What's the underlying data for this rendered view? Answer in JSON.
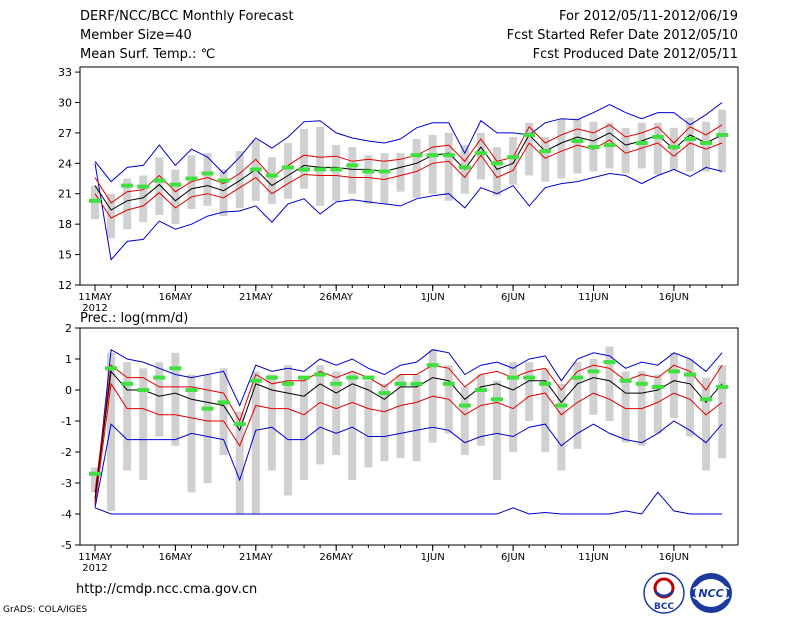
{
  "header": {
    "title": "DERF/NCC/BCC Monthly Forecast",
    "member_size": "Member Size=40",
    "variable": "Mean Surf. Temp.: ℃",
    "period": "For 2012/05/11-2012/06/19",
    "start_date": "Fcst Started Refer Date 2012/05/10",
    "produced_date": "Fcst Produced Date 2012/05/11"
  },
  "footer": {
    "url": "http://cmdp.ncc.cma.gov.cn",
    "grads": "GrADS: COLA/IGES",
    "logo_bcc": "BCC",
    "logo_ncc": "NCC"
  },
  "colors": {
    "median": "#000000",
    "inner": "#e00000",
    "outer": "#0000d0",
    "box": "#d0d0d0",
    "obs": "#40e040"
  },
  "chart_data": [
    {
      "type": "line",
      "title": "Mean Surf. Temp.: ℃",
      "xlabel": "",
      "ylabel": "",
      "x": [
        1,
        2,
        3,
        4,
        5,
        6,
        7,
        8,
        9,
        10,
        11,
        12,
        13,
        14,
        15,
        16,
        17,
        18,
        19,
        20,
        21,
        22,
        23,
        24,
        25,
        26,
        27,
        28,
        29,
        30,
        31,
        32,
        33,
        34,
        35,
        36,
        37,
        38,
        39,
        40
      ],
      "xticks": [
        {
          "day": 1,
          "label": "11MAY"
        },
        {
          "day": 6,
          "label": "16MAY"
        },
        {
          "day": 11,
          "label": "21MAY"
        },
        {
          "day": 16,
          "label": "26MAY"
        },
        {
          "day": 22,
          "label": "1JUN"
        },
        {
          "day": 27,
          "label": "6JUN"
        },
        {
          "day": 32,
          "label": "11JUN"
        },
        {
          "day": 37,
          "label": "16JUN"
        }
      ],
      "year_label": "2012",
      "ylim": [
        12,
        33.5
      ],
      "yticks": [
        12,
        15,
        18,
        21,
        24,
        27,
        30,
        33
      ],
      "series": [
        {
          "name": "max",
          "values": [
            24.0,
            14.5,
            16.3,
            16.5,
            18.3,
            17.5,
            18.0,
            18.8,
            19.2,
            19.3,
            19.8,
            18.2,
            20.0,
            20.5,
            19.0,
            20.2,
            20.4,
            20.2,
            20.0,
            19.8,
            20.5,
            20.8,
            21.0,
            19.6,
            21.6,
            21.0,
            21.8,
            19.8,
            21.6,
            22.0,
            22.2,
            22.6,
            23.0,
            22.8,
            22.0,
            22.8,
            23.4,
            22.7,
            23.6,
            23.2
          ]
        },
        {
          "name": "max_top",
          "values": [
            24.2,
            22.2,
            23.6,
            23.8,
            25.8,
            23.8,
            25.4,
            24.6,
            23.0,
            24.6,
            26.5,
            25.5,
            26.6,
            28.1,
            28.2,
            27.0,
            26.5,
            26.2,
            26.0,
            26.4,
            27.5,
            28.0,
            28.0,
            25.0,
            28.2,
            27.0,
            27.0,
            26.8,
            28.0,
            28.4,
            28.3,
            29.0,
            29.8,
            29.0,
            28.4,
            29.0,
            29.0,
            27.8,
            28.8,
            30.0
          ]
        },
        {
          "name": "upper",
          "values": [
            22.6,
            20.1,
            21.2,
            21.4,
            22.8,
            21.2,
            22.2,
            22.6,
            22.0,
            23.0,
            24.4,
            22.6,
            23.8,
            24.8,
            24.6,
            24.7,
            24.2,
            24.4,
            24.2,
            24.4,
            24.8,
            25.6,
            25.8,
            24.2,
            26.4,
            24.2,
            24.6,
            27.6,
            26.0,
            26.8,
            27.4,
            27.0,
            27.8,
            26.6,
            27.0,
            27.6,
            26.0,
            27.6,
            26.8,
            27.8
          ]
        },
        {
          "name": "median",
          "values": [
            21.8,
            19.4,
            20.3,
            20.6,
            21.9,
            20.3,
            21.5,
            21.8,
            21.3,
            22.3,
            23.4,
            21.8,
            22.8,
            23.8,
            23.6,
            23.6,
            23.4,
            23.4,
            23.2,
            23.6,
            24.0,
            24.8,
            25.0,
            23.4,
            25.6,
            23.4,
            24.0,
            26.8,
            25.2,
            26.0,
            26.6,
            26.2,
            27.0,
            25.8,
            26.2,
            26.8,
            25.4,
            26.8,
            26.0,
            26.8
          ]
        },
        {
          "name": "lower",
          "values": [
            21.0,
            18.6,
            19.4,
            19.8,
            21.1,
            19.6,
            20.7,
            21.0,
            20.6,
            21.6,
            22.6,
            21.0,
            22.0,
            22.9,
            22.8,
            22.8,
            22.6,
            22.6,
            22.4,
            22.8,
            23.2,
            24.0,
            24.2,
            22.6,
            24.8,
            22.6,
            23.3,
            26.0,
            24.5,
            25.2,
            25.8,
            25.4,
            26.3,
            25.0,
            25.5,
            26.0,
            24.7,
            26.0,
            25.4,
            26.0
          ]
        }
      ],
      "boxes": [
        [
          18.5,
          21.8
        ],
        [
          16.6,
          21.0
        ],
        [
          17.5,
          22.5
        ],
        [
          18.2,
          22.8
        ],
        [
          18.9,
          24.6
        ],
        [
          18.0,
          23.4
        ],
        [
          19.5,
          24.8
        ],
        [
          19.8,
          25.0
        ],
        [
          18.8,
          23.4
        ],
        [
          19.6,
          25.2
        ],
        [
          20.3,
          26.3
        ],
        [
          20.0,
          24.6
        ],
        [
          20.5,
          26.0
        ],
        [
          21.5,
          27.4
        ],
        [
          19.8,
          27.6
        ],
        [
          20.3,
          25.8
        ],
        [
          21.0,
          25.6
        ],
        [
          20.0,
          24.8
        ],
        [
          20.0,
          25.0
        ],
        [
          21.2,
          25.0
        ],
        [
          20.6,
          26.4
        ],
        [
          21.0,
          26.8
        ],
        [
          20.3,
          27.0
        ],
        [
          21.0,
          25.8
        ],
        [
          22.4,
          27.0
        ],
        [
          20.8,
          25.6
        ],
        [
          21.9,
          26.6
        ],
        [
          22.8,
          28.0
        ],
        [
          22.2,
          26.6
        ],
        [
          22.5,
          28.4
        ],
        [
          23.0,
          28.4
        ],
        [
          23.2,
          28.1
        ],
        [
          23.5,
          28.0
        ],
        [
          23.0,
          27.5
        ],
        [
          23.5,
          28.0
        ],
        [
          22.9,
          28.0
        ],
        [
          23.4,
          27.5
        ],
        [
          23.2,
          28.5
        ],
        [
          23.2,
          28.1
        ],
        [
          23.1,
          29.3
        ]
      ],
      "observed": [
        20.3,
        null,
        21.8,
        21.7,
        22.3,
        21.9,
        22.5,
        23.0,
        22.3,
        null,
        23.4,
        22.8,
        23.6,
        23.4,
        23.4,
        23.4,
        23.8,
        23.2,
        23.2,
        null,
        24.8,
        24.8,
        24.8,
        23.6,
        25.0,
        24.0,
        24.6,
        26.8,
        25.2,
        null,
        26.2,
        25.6,
        25.8,
        null,
        26.0,
        26.6,
        25.6,
        26.4,
        26.0,
        26.8
      ]
    },
    {
      "type": "line",
      "title": "Prec.: log(mm/d)",
      "xlabel": "",
      "ylabel": "",
      "x": [
        1,
        2,
        3,
        4,
        5,
        6,
        7,
        8,
        9,
        10,
        11,
        12,
        13,
        14,
        15,
        16,
        17,
        18,
        19,
        20,
        21,
        22,
        23,
        24,
        25,
        26,
        27,
        28,
        29,
        30,
        31,
        32,
        33,
        34,
        35,
        36,
        37,
        38,
        39,
        40
      ],
      "xticks": [
        {
          "day": 1,
          "label": "11MAY"
        },
        {
          "day": 6,
          "label": "16MAY"
        },
        {
          "day": 11,
          "label": "21MAY"
        },
        {
          "day": 16,
          "label": "26MAY"
        },
        {
          "day": 22,
          "label": "1JUN"
        },
        {
          "day": 27,
          "label": "6JUN"
        },
        {
          "day": 32,
          "label": "11JUN"
        },
        {
          "day": 37,
          "label": "16JUN"
        }
      ],
      "year_label": "2012",
      "ylim": [
        -5,
        2
      ],
      "yticks": [
        -5,
        -4,
        -3,
        -2,
        -1,
        0,
        1,
        2
      ],
      "series": [
        {
          "name": "max",
          "values": [
            -3.6,
            1.3,
            1.0,
            0.9,
            0.7,
            0.5,
            0.4,
            0.5,
            0.6,
            -0.5,
            0.8,
            0.6,
            0.7,
            0.6,
            1.0,
            0.8,
            1.0,
            0.7,
            0.5,
            0.8,
            0.9,
            1.3,
            1.2,
            0.5,
            0.8,
            0.9,
            0.7,
            1.0,
            1.1,
            0.3,
            1.0,
            1.2,
            1.1,
            0.7,
            0.9,
            0.8,
            1.2,
            1.0,
            0.6,
            1.2
          ]
        },
        {
          "name": "upper",
          "values": [
            -3.3,
            0.8,
            0.4,
            0.4,
            0.1,
            0.1,
            0.1,
            0.0,
            -0.1,
            -1.0,
            0.5,
            0.2,
            0.3,
            0.3,
            0.6,
            0.4,
            0.6,
            0.4,
            0.1,
            0.5,
            0.5,
            0.8,
            0.7,
            0.1,
            0.5,
            0.6,
            0.4,
            0.6,
            0.7,
            0.0,
            0.6,
            0.8,
            0.7,
            0.3,
            0.5,
            0.4,
            0.8,
            0.6,
            0.0,
            0.8
          ]
        },
        {
          "name": "median",
          "values": [
            -3.5,
            0.6,
            0.0,
            0.0,
            -0.2,
            -0.1,
            -0.3,
            -0.4,
            -0.5,
            -1.3,
            0.2,
            0.0,
            -0.1,
            -0.2,
            0.2,
            -0.1,
            0.2,
            0.0,
            -0.3,
            0.1,
            0.1,
            0.4,
            0.3,
            -0.3,
            0.1,
            0.2,
            0.0,
            0.3,
            0.3,
            -0.4,
            0.2,
            0.4,
            0.3,
            -0.1,
            -0.1,
            0.0,
            0.3,
            0.2,
            -0.4,
            0.2
          ]
        },
        {
          "name": "lower",
          "values": [
            -3.7,
            0.2,
            -0.6,
            -0.6,
            -0.8,
            -0.8,
            -0.9,
            -1.0,
            -1.0,
            -1.8,
            -0.5,
            -0.6,
            -0.6,
            -0.8,
            -0.4,
            -0.6,
            -0.4,
            -0.6,
            -0.7,
            -0.5,
            -0.4,
            -0.2,
            -0.3,
            -0.8,
            -0.5,
            -0.4,
            -0.6,
            -0.2,
            -0.1,
            -0.8,
            -0.4,
            -0.1,
            -0.3,
            -0.6,
            -0.6,
            -0.4,
            -0.1,
            -0.3,
            -0.8,
            -0.4
          ]
        },
        {
          "name": "min",
          "values": [
            -3.8,
            -1.1,
            -1.6,
            -1.6,
            -1.6,
            -1.6,
            -1.4,
            -1.5,
            -1.6,
            -2.9,
            -1.3,
            -1.2,
            -1.6,
            -1.6,
            -1.2,
            -1.4,
            -1.2,
            -1.5,
            -1.5,
            -1.4,
            -1.3,
            -1.2,
            -1.3,
            -1.7,
            -1.5,
            -1.4,
            -1.5,
            -1.2,
            -1.1,
            -1.8,
            -1.4,
            -1.1,
            -1.4,
            -1.6,
            -1.7,
            -1.4,
            -1.0,
            -1.3,
            -1.7,
            -1.1
          ]
        },
        {
          "name": "floor",
          "values": [
            -3.8,
            -4.0,
            -4.0,
            -4.0,
            -4.0,
            -4.0,
            -4.0,
            -4.0,
            -4.0,
            -4.0,
            -4.0,
            -4.0,
            -4.0,
            -4.0,
            -4.0,
            -4.0,
            -4.0,
            -4.0,
            -4.0,
            -4.0,
            -4.0,
            -4.0,
            -4.0,
            -4.0,
            -4.0,
            -4.0,
            -3.8,
            -4.0,
            -3.95,
            -4.0,
            -4.0,
            -4.0,
            -4.0,
            -3.9,
            -4.0,
            -3.3,
            -3.9,
            -4.0,
            -4.0,
            -4.0
          ]
        }
      ],
      "boxes": [
        [
          -3.3,
          -2.5
        ],
        [
          -3.9,
          1.2
        ],
        [
          -2.6,
          0.9
        ],
        [
          -2.9,
          0.7
        ],
        [
          -1.5,
          0.9
        ],
        [
          -1.8,
          1.2
        ],
        [
          -3.3,
          0.5
        ],
        [
          -3.0,
          0.5
        ],
        [
          -2.1,
          0.7
        ],
        [
          -4.0,
          -0.7
        ],
        [
          -4.0,
          0.6
        ],
        [
          -2.6,
          0.5
        ],
        [
          -3.4,
          0.8
        ],
        [
          -2.9,
          0.4
        ],
        [
          -2.4,
          0.8
        ],
        [
          -2.1,
          0.6
        ],
        [
          -2.9,
          0.6
        ],
        [
          -2.5,
          0.3
        ],
        [
          -2.3,
          0.2
        ],
        [
          -2.2,
          0.5
        ],
        [
          -2.3,
          0.5
        ],
        [
          -1.7,
          1.3
        ],
        [
          -1.4,
          0.8
        ],
        [
          -2.1,
          0.1
        ],
        [
          -1.8,
          0.5
        ],
        [
          -2.9,
          0.3
        ],
        [
          -2.0,
          0.9
        ],
        [
          -1.0,
          0.9
        ],
        [
          -2.0,
          0.7
        ],
        [
          -2.6,
          0.2
        ],
        [
          -1.9,
          0.9
        ],
        [
          -0.8,
          1.0
        ],
        [
          -1.0,
          1.4
        ],
        [
          -1.7,
          0.6
        ],
        [
          -1.8,
          0.6
        ],
        [
          -1.4,
          0.5
        ],
        [
          -0.9,
          1.2
        ],
        [
          -1.5,
          1.0
        ],
        [
          -2.6,
          0.4
        ],
        [
          -2.2,
          0.8
        ]
      ],
      "observed": [
        -2.7,
        0.7,
        0.2,
        0.0,
        0.4,
        0.7,
        0.0,
        -0.6,
        -0.4,
        -1.1,
        0.3,
        0.4,
        0.2,
        0.4,
        0.5,
        0.2,
        0.4,
        0.4,
        -0.1,
        0.2,
        0.2,
        0.8,
        0.2,
        -0.5,
        0.0,
        -0.3,
        0.4,
        0.4,
        0.2,
        -0.5,
        0.4,
        0.6,
        0.9,
        0.3,
        0.2,
        0.1,
        0.6,
        0.5,
        -0.3,
        0.1
      ]
    }
  ]
}
